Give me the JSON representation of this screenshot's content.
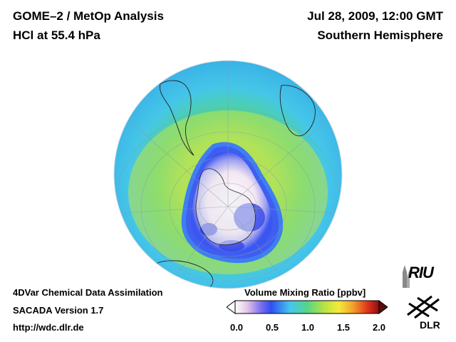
{
  "header": {
    "title": "GOME–2 / MetOp Analysis",
    "subtitle": "HCl at 55.4 hPa",
    "datetime": "Jul 28, 2009, 12:00 GMT",
    "region": "Southern Hemisphere"
  },
  "footer": {
    "line1": "4DVar Chemical Data Assimilation",
    "line2": "SACADA Version 1.7",
    "line3": "http://wdc.dlr.de"
  },
  "colorbar": {
    "title": "Volume Mixing Ratio [ppbv]",
    "ticks": [
      "0.0",
      "0.5",
      "1.0",
      "1.5",
      "2.0"
    ],
    "range": [
      0.0,
      2.0
    ]
  },
  "logos": {
    "riu": "RIU",
    "dlr": "DLR"
  },
  "map": {
    "projection": "orthographic",
    "hemisphere": "Southern Hemisphere",
    "quantity": "HCl",
    "pressure_level": "55.4 hPa",
    "colors": {
      "low": "#ffffff",
      "mid_low": "#2f3fe0",
      "mid": "#54d4e8",
      "mid_high": "#b7e24a",
      "high": "#e83b1c"
    }
  }
}
